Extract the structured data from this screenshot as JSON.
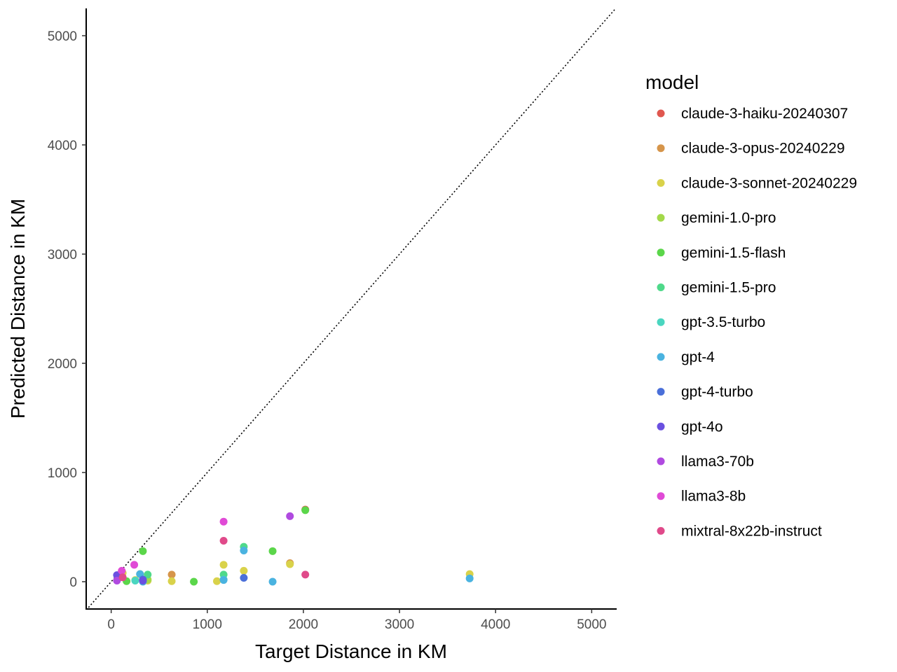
{
  "chart_data": {
    "type": "scatter",
    "title": "",
    "xlabel": "Target Distance in KM",
    "ylabel": "Predicted Distance in KM",
    "xlim": [
      -260,
      5260
    ],
    "ylim": [
      -250,
      5250
    ],
    "xticks": [
      0,
      1000,
      2000,
      3000,
      4000,
      5000
    ],
    "yticks": [
      0,
      1000,
      2000,
      3000,
      4000,
      5000
    ],
    "reference_line": "y = x (dotted)",
    "grid": false,
    "legend_position": "right",
    "legend_title": "model",
    "series": [
      {
        "name": "claude-3-haiku-20240307",
        "color": "#e0574f",
        "points": [
          [
            2020,
            660
          ]
        ]
      },
      {
        "name": "claude-3-opus-20240229",
        "color": "#d6954a",
        "points": [
          [
            630,
            65
          ],
          [
            300,
            70
          ],
          [
            1860,
            170
          ]
        ]
      },
      {
        "name": "claude-3-sonnet-20240229",
        "color": "#d9d24a",
        "points": [
          [
            90,
            40
          ],
          [
            120,
            80
          ],
          [
            250,
            15
          ],
          [
            380,
            10
          ],
          [
            630,
            5
          ],
          [
            1100,
            5
          ],
          [
            1170,
            155
          ],
          [
            1380,
            100
          ],
          [
            1860,
            160
          ],
          [
            3730,
            70
          ]
        ]
      },
      {
        "name": "gemini-1.0-pro",
        "color": "#a3d94a",
        "points": [
          [
            100,
            60
          ],
          [
            380,
            20
          ]
        ]
      },
      {
        "name": "gemini-1.5-flash",
        "color": "#5bd64a",
        "points": [
          [
            160,
            5
          ],
          [
            330,
            280
          ],
          [
            860,
            0
          ],
          [
            1680,
            280
          ],
          [
            2020,
            655
          ]
        ]
      },
      {
        "name": "gemini-1.5-pro",
        "color": "#4fd98a",
        "points": [
          [
            380,
            65
          ],
          [
            1170,
            65
          ],
          [
            1380,
            320
          ]
        ]
      },
      {
        "name": "gpt-3.5-turbo",
        "color": "#4ad6c0",
        "points": [
          [
            250,
            10
          ],
          [
            1170,
            20
          ]
        ]
      },
      {
        "name": "gpt-4",
        "color": "#4ab3e0",
        "points": [
          [
            300,
            70
          ],
          [
            330,
            0
          ],
          [
            1170,
            15
          ],
          [
            1380,
            285
          ],
          [
            1680,
            0
          ],
          [
            3730,
            30
          ]
        ]
      },
      {
        "name": "gpt-4-turbo",
        "color": "#4a6fd9",
        "points": [
          [
            1380,
            35
          ],
          [
            330,
            20
          ]
        ]
      },
      {
        "name": "gpt-4o",
        "color": "#6a50e0",
        "points": [
          [
            60,
            60
          ],
          [
            330,
            10
          ]
        ]
      },
      {
        "name": "llama3-70b",
        "color": "#b04ae0",
        "points": [
          [
            1860,
            600
          ],
          [
            60,
            10
          ]
        ]
      },
      {
        "name": "llama3-8b",
        "color": "#e04ad6",
        "points": [
          [
            110,
            100
          ],
          [
            240,
            155
          ],
          [
            1170,
            550
          ]
        ]
      },
      {
        "name": "mixtral-8x22b-instruct",
        "color": "#e04a8a",
        "points": [
          [
            1170,
            375
          ],
          [
            2020,
            65
          ],
          [
            120,
            40
          ]
        ]
      }
    ]
  }
}
